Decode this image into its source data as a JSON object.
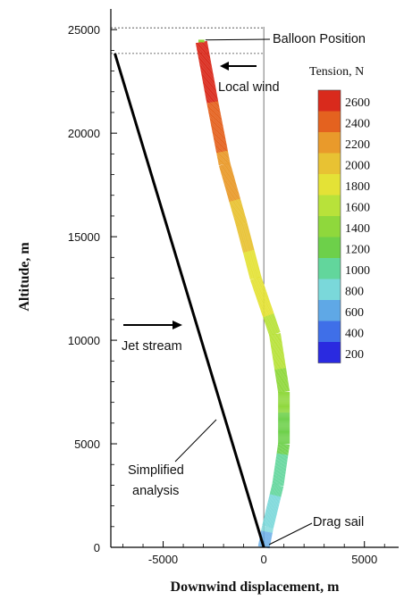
{
  "chart_data": {
    "type": "line",
    "xlabel": "Downwind displacement, m",
    "ylabel": "Altitude, m",
    "xlim": [
      -7600,
      6700
    ],
    "ylim": [
      0,
      26000
    ],
    "xticks": [
      -5000,
      0,
      5000
    ],
    "xtick_labels": [
      "-5000",
      "0",
      "5000"
    ],
    "yticks": [
      0,
      5000,
      10000,
      15000,
      20000,
      25000
    ],
    "ytick_labels": [
      "0",
      "5000",
      "10000",
      "15000",
      "20000",
      "25000"
    ],
    "reference_lines": {
      "vertical_x": 0,
      "balloon_altitude": 25000,
      "local_wind_altitude": 23850
    },
    "series": [
      {
        "name": "Simplified analysis",
        "color": "#000000",
        "x": [
          0,
          -7400
        ],
        "y": [
          0,
          23850
        ]
      },
      {
        "name": "Tension, N",
        "x": [
          -3100,
          -2550,
          -1950,
          -1100,
          -400,
          550,
          1000,
          1000,
          700,
          200,
          0
        ],
        "y": [
          24400,
          21500,
          18500,
          15600,
          13000,
          10300,
          7500,
          5000,
          3000,
          1000,
          0
        ],
        "tension": [
          2700,
          2500,
          2250,
          2000,
          1800,
          1650,
          1400,
          1150,
          950,
          750,
          550
        ]
      }
    ],
    "legend": {
      "title": "Tension, N",
      "placement": "right",
      "labels": [
        "2600",
        "2400",
        "2200",
        "2000",
        "1800",
        "1600",
        "1400",
        "1200",
        "1000",
        "800",
        "600",
        "400",
        "200"
      ],
      "colors": [
        "#d92a1c",
        "#e4621f",
        "#e99a2b",
        "#e8c233",
        "#e4e236",
        "#b8e23a",
        "#8fd83c",
        "#6dd04a",
        "#62d69c",
        "#7ad8da",
        "#5fa8e6",
        "#3f6fe8",
        "#2a2ae0"
      ]
    },
    "annotations": [
      {
        "text": "Balloon Position"
      },
      {
        "text": "Local wind"
      },
      {
        "text": "Jet stream"
      },
      {
        "text": "Simplified"
      },
      {
        "text": "analysis"
      },
      {
        "text": "Drag sail"
      }
    ]
  }
}
